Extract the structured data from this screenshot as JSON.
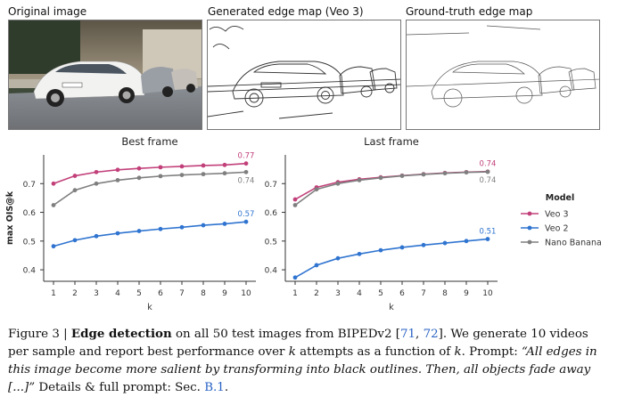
{
  "panels": {
    "original_title": "Original image",
    "generated_title": "Generated edge map (Veo 3)",
    "groundtruth_title": "Ground-truth edge map"
  },
  "chart_data": [
    {
      "type": "line",
      "title": "Best frame",
      "xlabel": "k",
      "ylabel": "max OIS@k",
      "x": [
        1,
        2,
        3,
        4,
        5,
        6,
        7,
        8,
        9,
        10
      ],
      "xticks": [
        "1",
        "2",
        "3",
        "4",
        "5",
        "6",
        "7",
        "8",
        "9",
        "10"
      ],
      "yticks": [
        "0.4",
        "0.5",
        "0.6",
        "0.7"
      ],
      "ylim": [
        0.36,
        0.8
      ],
      "series": [
        {
          "name": "Veo 3",
          "color": "#c2407a",
          "values": [
            0.7,
            0.727,
            0.74,
            0.748,
            0.753,
            0.757,
            0.76,
            0.763,
            0.765,
            0.77
          ],
          "end_label": "0.77"
        },
        {
          "name": "Nano Banana",
          "color": "#7f7f7f",
          "values": [
            0.625,
            0.677,
            0.7,
            0.712,
            0.72,
            0.726,
            0.73,
            0.733,
            0.736,
            0.74
          ],
          "end_label": "0.74"
        },
        {
          "name": "Veo 2",
          "color": "#2f74d0",
          "values": [
            0.482,
            0.503,
            0.517,
            0.527,
            0.535,
            0.542,
            0.548,
            0.555,
            0.56,
            0.567
          ],
          "end_label": "0.57"
        }
      ]
    },
    {
      "type": "line",
      "title": "Last frame",
      "xlabel": "k",
      "ylabel": "",
      "x": [
        1,
        2,
        3,
        4,
        5,
        6,
        7,
        8,
        9,
        10
      ],
      "xticks": [
        "1",
        "2",
        "3",
        "4",
        "5",
        "6",
        "7",
        "8",
        "9",
        "10"
      ],
      "yticks": [
        "0.4",
        "0.5",
        "0.6",
        "0.7"
      ],
      "ylim": [
        0.36,
        0.8
      ],
      "series": [
        {
          "name": "Veo 3",
          "color": "#c2407a",
          "values": [
            0.645,
            0.687,
            0.705,
            0.715,
            0.722,
            0.728,
            0.733,
            0.737,
            0.74,
            0.742
          ],
          "end_label": "0.74"
        },
        {
          "name": "Nano Banana",
          "color": "#7f7f7f",
          "values": [
            0.625,
            0.68,
            0.7,
            0.712,
            0.72,
            0.727,
            0.732,
            0.736,
            0.739,
            0.741
          ],
          "end_label": "0.74"
        },
        {
          "name": "Veo 2",
          "color": "#2f74d0",
          "values": [
            0.373,
            0.416,
            0.44,
            0.455,
            0.468,
            0.478,
            0.486,
            0.493,
            0.5,
            0.507
          ],
          "end_label": "0.51"
        }
      ]
    }
  ],
  "legend": {
    "title": "Model",
    "items": [
      {
        "name": "Veo 3",
        "color": "#c2407a"
      },
      {
        "name": "Veo 2",
        "color": "#2f74d0"
      },
      {
        "name": "Nano Banana",
        "color": "#7f7f7f"
      }
    ]
  },
  "caption": {
    "label": "Figure 3 | ",
    "bold": "Edge detection",
    "text1": " on all 50 test images from BIPEDv2 [",
    "cite1": "71",
    "sep": ", ",
    "cite2": "72",
    "text2": "]. We generate 10 videos per sample and report best performance over ",
    "k": "k",
    "text3": " attempts as a function of ",
    "k2": "k",
    "text4": ". Prompt: ",
    "prompt": "“All edges in this image become more salient by transforming into black outlines. Then, all objects fade away [...]”",
    "text5": " Details & full prompt: Sec. ",
    "sec": "B.1",
    "text6": "."
  }
}
